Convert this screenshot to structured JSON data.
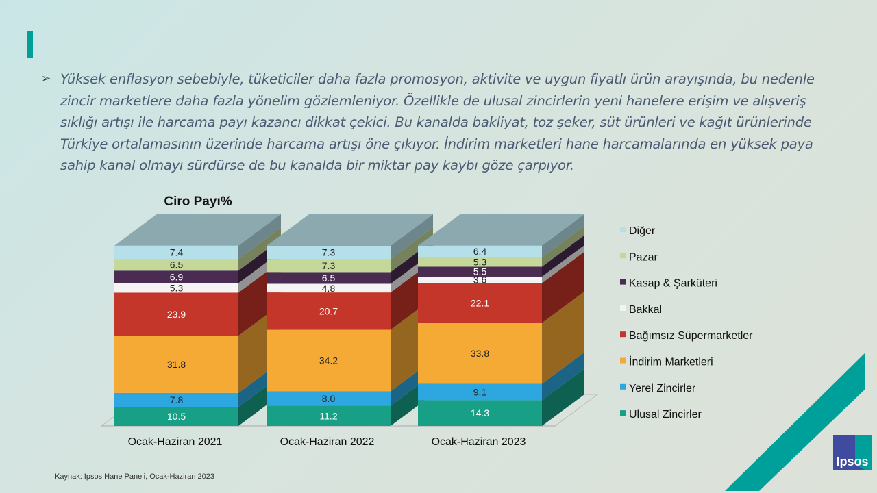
{
  "bullet_text": "Yüksek enflasyon sebebiyle, tüketiciler daha fazla promosyon, aktivite ve uygun fiyatlı ürün arayışında, bu nedenle zincir marketlere daha fazla yönelim gözlemleniyor. Özellikle de ulusal zincirlerin yeni hanelere erişim ve alışveriş sıklığı artışı ile harcama payı kazancı dikkat çekici. Bu kanalda bakliyat, toz şeker, süt ürünleri ve kağıt ürünlerinde Türkiye ortalamasının üzerinde harcama artışı öne çıkıyor. İndirim marketleri hane harcamalarında en yüksek paya sahip kanal olmayı sürdürse de bu kanalda bir miktar pay kaybı göze çarpıyor.",
  "bullet_icon": "arrowhead-bullet",
  "source": "Kaynak: Ipsos Hane Paneli, Ocak-Haziran 2023",
  "logo_text": "Ipsos",
  "chart_data": {
    "type": "bar",
    "stacked": true,
    "three_d": true,
    "title": "Ciro Payı%",
    "categories": [
      "Ocak-Haziran 2021",
      "Ocak-Haziran 2022",
      "Ocak-Haziran 2023"
    ],
    "ylim": [
      0,
      100
    ],
    "legend_position": "right",
    "series": [
      {
        "name": "Ulusal Zincirler",
        "color": "#17a085",
        "label_color": "#ffffff",
        "values": [
          10.5,
          11.2,
          14.3
        ]
      },
      {
        "name": "Yerel Zincirler",
        "color": "#2ea7e0",
        "label_color": "#222222",
        "values": [
          7.8,
          8.0,
          9.1
        ]
      },
      {
        "name": "İndirim Marketleri",
        "color": "#f6aa36",
        "label_color": "#222222",
        "values": [
          31.8,
          34.2,
          33.8
        ]
      },
      {
        "name": "Bağımsız Süpermarketler",
        "color": "#c4362a",
        "label_color": "#ffffff",
        "values": [
          23.9,
          20.7,
          22.1
        ]
      },
      {
        "name": "Bakkal",
        "color": "#f4f4f4",
        "label_color": "#222222",
        "values": [
          5.3,
          4.8,
          3.6
        ]
      },
      {
        "name": "Kasap & Şarküteri",
        "color": "#4a2c52",
        "label_color": "#ffffff",
        "values": [
          6.9,
          6.5,
          5.5
        ]
      },
      {
        "name": "Pazar",
        "color": "#c5d89a",
        "label_color": "#222222",
        "values": [
          6.5,
          7.3,
          5.3
        ]
      },
      {
        "name": "Diğer",
        "color": "#b5e0ea",
        "label_color": "#222222",
        "values": [
          7.4,
          7.3,
          6.4
        ]
      }
    ]
  }
}
